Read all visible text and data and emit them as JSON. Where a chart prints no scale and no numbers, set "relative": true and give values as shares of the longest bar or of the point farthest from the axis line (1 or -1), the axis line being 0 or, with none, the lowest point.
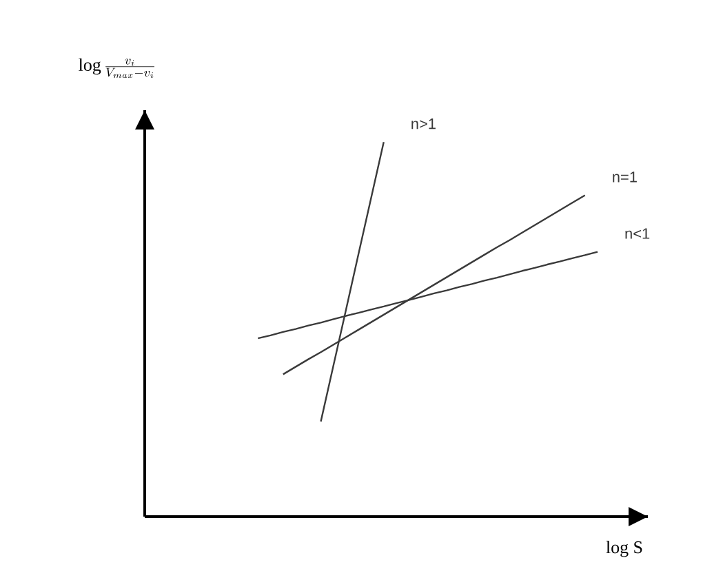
{
  "chart_data": {
    "type": "line",
    "relative": true,
    "xlabel": "log S",
    "ylabel": "\\log \\frac{v_i}{V_{max} - v_i}",
    "marker": "none",
    "categories": [
      null,
      null,
      null,
      null,
      null,
      null,
      null,
      null,
      null,
      null,
      null,
      null,
      null,
      null,
      null,
      null,
      null,
      null,
      null,
      null,
      null,
      null,
      null,
      null,
      null,
      null,
      null,
      null,
      null,
      null,
      null,
      null,
      null,
      null,
      null,
      null,
      null,
      null,
      null,
      null,
      null
    ],
    "series": [
      {
        "name": "n>1",
        "color": "#3a3a3a",
        "values": [
          null,
          null,
          null,
          null,
          null,
          null,
          null,
          null,
          null,
          null,
          null,
          null,
          null,
          null,
          0.254,
          0.403,
          0.552,
          0.702,
          0.851,
          1.0,
          null,
          null,
          null,
          null,
          null,
          null,
          null,
          null,
          null,
          null,
          null,
          null,
          null,
          null,
          null,
          null,
          null,
          null,
          null,
          null,
          null
        ]
      },
      {
        "name": "n=1",
        "color": "#3a3a3a",
        "values": [
          null,
          null,
          null,
          null,
          null,
          null,
          null,
          null,
          null,
          null,
          null,
          0.38,
          0.4,
          0.42,
          0.439,
          0.459,
          0.479,
          0.499,
          0.519,
          0.539,
          0.559,
          0.579,
          0.599,
          0.619,
          0.639,
          0.659,
          0.679,
          0.699,
          0.719,
          0.738,
          0.758,
          0.778,
          0.798,
          0.818,
          0.838,
          0.858,
          null,
          null,
          null,
          null,
          null
        ]
      },
      {
        "name": "n<1",
        "color": "#3a3a3a",
        "values": [
          null,
          null,
          null,
          null,
          null,
          null,
          null,
          null,
          null,
          0.476,
          0.484,
          0.493,
          0.501,
          0.51,
          0.518,
          0.527,
          0.536,
          0.544,
          0.553,
          0.561,
          0.57,
          0.578,
          0.587,
          0.596,
          0.604,
          0.613,
          0.621,
          0.63,
          0.638,
          0.647,
          0.656,
          0.664,
          0.673,
          0.681,
          0.69,
          0.698,
          0.707,
          null,
          null,
          null,
          null
        ]
      }
    ]
  }
}
